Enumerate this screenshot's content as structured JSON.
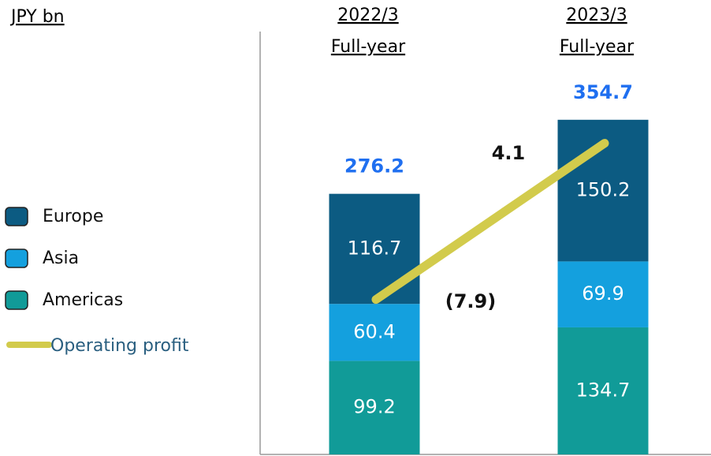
{
  "chart_data": {
    "type": "bar",
    "stacked": true,
    "unit_label": "JPY bn",
    "categories": [
      "2022/3",
      "2023/3"
    ],
    "category_sublabel": "Full-year",
    "series": [
      {
        "name": "Americas",
        "color": "#119b98",
        "values": [
          99.2,
          134.7
        ]
      },
      {
        "name": "Asia",
        "color": "#14a0de",
        "values": [
          60.4,
          69.9
        ]
      },
      {
        "name": "Europe",
        "color": "#0c5b82",
        "values": [
          116.7,
          150.2
        ]
      }
    ],
    "totals": [
      276.2,
      354.7
    ],
    "totals_color": "#1f6ff0",
    "line_series": {
      "name": "Operating profit",
      "color": "#d2cb4c",
      "axis": "y2",
      "values": [
        -7.9,
        4.1
      ],
      "value_labels": [
        "(7.9)",
        "4.1"
      ]
    },
    "ylim": [
      0,
      450
    ],
    "y2lim": [
      -19.8,
      12.8
    ]
  }
}
